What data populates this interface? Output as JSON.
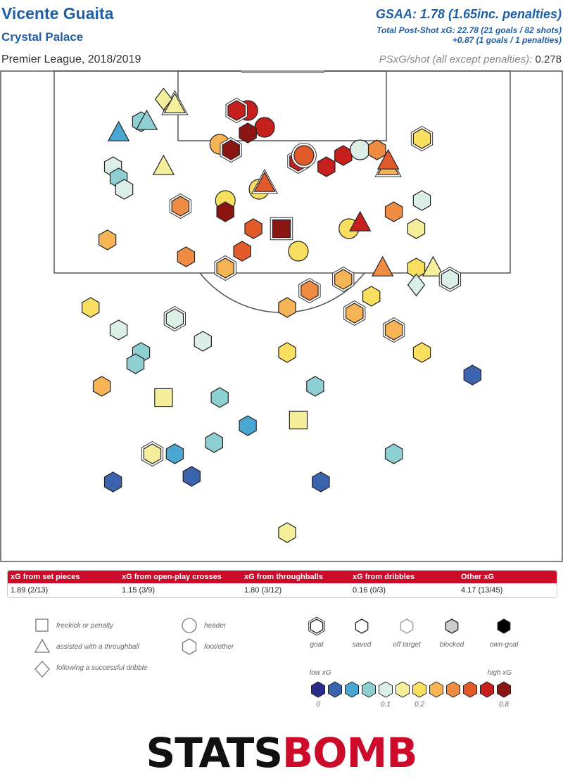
{
  "header": {
    "player": "Vicente Guaita",
    "team": "Crystal Palace",
    "competition": "Premier League, 2018/2019",
    "gsaa": "GSAA: 1.78 (1.65inc. penalties)",
    "psxg_line1": "Total Post-Shot xG: 22.78 (21 goals / 82 shots)",
    "psxg_line2": "+0.87 (1 goals / 1 penalties)",
    "per_shot_label": "PSxG/shot (all except penalties):",
    "per_shot_value": "0.278"
  },
  "xg_table": {
    "headers": [
      "xG from set pieces",
      "xG from open-play crosses",
      "xG from throughballs",
      "xG from dribbles",
      "Other xG"
    ],
    "values": [
      "1.89 (2/13)",
      "1.15 (3/9)",
      "1.80 (3/12)",
      "0.16 (0/3)",
      "4.17 (13/45)"
    ]
  },
  "legend": {
    "type_labels": [
      "freekick or penalty",
      "assisted with a throughball",
      "following a successful dribble",
      "header",
      "foot/other"
    ],
    "outcome_labels": [
      "goal",
      "saved",
      "off target",
      "blocked",
      "own-goal"
    ],
    "outcome_fills": [
      "#ffffff",
      "#ffffff",
      "#ffffff",
      "#cccccc",
      "#000000"
    ],
    "scale_low": "low xG",
    "scale_high": "high xG",
    "scale_ticks": [
      "0",
      "0.1",
      "0.2",
      "0.8"
    ],
    "scale_colors": [
      "#2b2c8a",
      "#3b63ae",
      "#4aa7d2",
      "#8dcfd3",
      "#dcefe6",
      "#f5ee9a",
      "#f9df5f",
      "#f6b457",
      "#ef8c44",
      "#e05a2a",
      "#c6201e",
      "#8b1512"
    ]
  },
  "logo": {
    "part1": "STATS",
    "part2": "BOMB"
  },
  "chart_data": {
    "type": "scatter",
    "description_axes": "shot locations on half pitch (x: 0-100 left-right, y: yards from goal line)",
    "shots": [
      {
        "x": 31,
        "y": 6,
        "shape": "tri",
        "xg": 0.15,
        "outcome": "goal"
      },
      {
        "x": 29,
        "y": 5,
        "shape": "dia",
        "xg": 0.18,
        "outcome": "saved"
      },
      {
        "x": 25,
        "y": 9,
        "shape": "hex",
        "xg": 0.07,
        "outcome": "saved"
      },
      {
        "x": 26,
        "y": 9,
        "shape": "tri",
        "xg": 0.07,
        "outcome": "saved"
      },
      {
        "x": 21,
        "y": 11,
        "shape": "tri",
        "xg": 0.04,
        "outcome": "saved"
      },
      {
        "x": 44,
        "y": 7,
        "shape": "circ",
        "xg": 0.75,
        "outcome": "saved"
      },
      {
        "x": 42,
        "y": 7,
        "shape": "hex",
        "xg": 0.7,
        "outcome": "goal"
      },
      {
        "x": 47,
        "y": 10,
        "shape": "circ",
        "xg": 0.7,
        "outcome": "saved"
      },
      {
        "x": 39,
        "y": 13,
        "shape": "circ",
        "xg": 0.35,
        "outcome": "saved"
      },
      {
        "x": 44,
        "y": 11,
        "shape": "hex",
        "xg": 0.85,
        "outcome": "saved"
      },
      {
        "x": 41,
        "y": 14,
        "shape": "hex",
        "xg": 0.85,
        "outcome": "goal"
      },
      {
        "x": 20,
        "y": 17,
        "shape": "hex",
        "xg": 0.1,
        "outcome": "saved"
      },
      {
        "x": 21,
        "y": 19,
        "shape": "hex",
        "xg": 0.08,
        "outcome": "saved"
      },
      {
        "x": 22,
        "y": 21,
        "shape": "hex",
        "xg": 0.1,
        "outcome": "saved"
      },
      {
        "x": 29,
        "y": 17,
        "shape": "tri",
        "xg": 0.18,
        "outcome": "saved"
      },
      {
        "x": 53,
        "y": 16,
        "shape": "hex",
        "xg": 0.75,
        "outcome": "goal"
      },
      {
        "x": 54,
        "y": 15,
        "shape": "circ",
        "xg": 0.6,
        "outcome": "goal"
      },
      {
        "x": 58,
        "y": 17,
        "shape": "hex",
        "xg": 0.75,
        "outcome": "saved"
      },
      {
        "x": 61,
        "y": 15,
        "shape": "hex",
        "xg": 0.75,
        "outcome": "saved"
      },
      {
        "x": 64,
        "y": 14,
        "shape": "circ",
        "xg": 0.1,
        "outcome": "saved"
      },
      {
        "x": 67,
        "y": 14,
        "shape": "hex",
        "xg": 0.45,
        "outcome": "saved"
      },
      {
        "x": 69,
        "y": 17,
        "shape": "tri",
        "xg": 0.35,
        "outcome": "goal"
      },
      {
        "x": 69,
        "y": 16,
        "shape": "tri",
        "xg": 0.6,
        "outcome": "saved"
      },
      {
        "x": 75,
        "y": 12,
        "shape": "hex",
        "xg": 0.2,
        "outcome": "goal"
      },
      {
        "x": 40,
        "y": 23,
        "shape": "circ",
        "xg": 0.2,
        "outcome": "saved"
      },
      {
        "x": 40,
        "y": 25,
        "shape": "hex",
        "xg": 0.8,
        "outcome": "saved"
      },
      {
        "x": 46,
        "y": 21,
        "shape": "circ",
        "xg": 0.2,
        "outcome": "saved"
      },
      {
        "x": 47,
        "y": 20,
        "shape": "tri",
        "xg": 0.6,
        "outcome": "goal"
      },
      {
        "x": 32,
        "y": 24,
        "shape": "hex",
        "xg": 0.4,
        "outcome": "goal"
      },
      {
        "x": 45,
        "y": 28,
        "shape": "hex",
        "xg": 0.5,
        "outcome": "saved"
      },
      {
        "x": 50,
        "y": 28,
        "shape": "sq",
        "xg": 0.85,
        "outcome": "goal"
      },
      {
        "x": 62,
        "y": 28,
        "shape": "circ",
        "xg": 0.2,
        "outcome": "saved"
      },
      {
        "x": 64,
        "y": 27,
        "shape": "tri",
        "xg": 0.7,
        "outcome": "saved"
      },
      {
        "x": 70,
        "y": 25,
        "shape": "hex",
        "xg": 0.45,
        "outcome": "saved"
      },
      {
        "x": 75,
        "y": 23,
        "shape": "hex",
        "xg": 0.12,
        "outcome": "saved"
      },
      {
        "x": 74,
        "y": 28,
        "shape": "hex",
        "xg": 0.15,
        "outcome": "saved"
      },
      {
        "x": 19,
        "y": 30,
        "shape": "hex",
        "xg": 0.3,
        "outcome": "saved"
      },
      {
        "x": 33,
        "y": 33,
        "shape": "hex",
        "xg": 0.45,
        "outcome": "saved"
      },
      {
        "x": 43,
        "y": 32,
        "shape": "hex",
        "xg": 0.5,
        "outcome": "saved"
      },
      {
        "x": 40,
        "y": 35,
        "shape": "hex",
        "xg": 0.3,
        "outcome": "goal"
      },
      {
        "x": 53,
        "y": 32,
        "shape": "circ",
        "xg": 0.2,
        "outcome": "saved"
      },
      {
        "x": 68,
        "y": 35,
        "shape": "tri",
        "xg": 0.4,
        "outcome": "saved"
      },
      {
        "x": 74,
        "y": 35,
        "shape": "hex",
        "xg": 0.2,
        "outcome": "saved"
      },
      {
        "x": 77,
        "y": 35,
        "shape": "tri",
        "xg": 0.15,
        "outcome": "saved"
      },
      {
        "x": 80,
        "y": 37,
        "shape": "hex",
        "xg": 0.12,
        "outcome": "goal"
      },
      {
        "x": 74,
        "y": 38,
        "shape": "dia",
        "xg": 0.1,
        "outcome": "saved"
      },
      {
        "x": 61,
        "y": 37,
        "shape": "hex",
        "xg": 0.3,
        "outcome": "goal"
      },
      {
        "x": 55,
        "y": 39,
        "shape": "hex",
        "xg": 0.45,
        "outcome": "goal"
      },
      {
        "x": 66,
        "y": 40,
        "shape": "hex",
        "xg": 0.2,
        "outcome": "saved"
      },
      {
        "x": 16,
        "y": 42,
        "shape": "hex",
        "xg": 0.2,
        "outcome": "saved"
      },
      {
        "x": 51,
        "y": 42,
        "shape": "hex",
        "xg": 0.3,
        "outcome": "saved"
      },
      {
        "x": 63,
        "y": 43,
        "shape": "hex",
        "xg": 0.3,
        "outcome": "goal"
      },
      {
        "x": 31,
        "y": 44,
        "shape": "hex",
        "xg": 0.12,
        "outcome": "goal"
      },
      {
        "x": 21,
        "y": 46,
        "shape": "hex",
        "xg": 0.12,
        "outcome": "saved"
      },
      {
        "x": 36,
        "y": 48,
        "shape": "hex",
        "xg": 0.12,
        "outcome": "saved"
      },
      {
        "x": 70,
        "y": 46,
        "shape": "hex",
        "xg": 0.3,
        "outcome": "goal"
      },
      {
        "x": 25,
        "y": 50,
        "shape": "hex",
        "xg": 0.09,
        "outcome": "saved"
      },
      {
        "x": 24,
        "y": 52,
        "shape": "hex",
        "xg": 0.08,
        "outcome": "saved"
      },
      {
        "x": 51,
        "y": 50,
        "shape": "hex",
        "xg": 0.2,
        "outcome": "saved"
      },
      {
        "x": 75,
        "y": 50,
        "shape": "hex",
        "xg": 0.2,
        "outcome": "saved"
      },
      {
        "x": 18,
        "y": 56,
        "shape": "hex",
        "xg": 0.3,
        "outcome": "saved"
      },
      {
        "x": 29,
        "y": 58,
        "shape": "sq",
        "xg": 0.15,
        "outcome": "saved"
      },
      {
        "x": 39,
        "y": 58,
        "shape": "hex",
        "xg": 0.09,
        "outcome": "saved"
      },
      {
        "x": 56,
        "y": 56,
        "shape": "hex",
        "xg": 0.07,
        "outcome": "saved"
      },
      {
        "x": 84,
        "y": 54,
        "shape": "hex",
        "xg": 0.02,
        "outcome": "saved"
      },
      {
        "x": 44,
        "y": 63,
        "shape": "hex",
        "xg": 0.04,
        "outcome": "saved"
      },
      {
        "x": 53,
        "y": 62,
        "shape": "sq",
        "xg": 0.15,
        "outcome": "saved"
      },
      {
        "x": 38,
        "y": 66,
        "shape": "hex",
        "xg": 0.09,
        "outcome": "saved"
      },
      {
        "x": 27,
        "y": 68,
        "shape": "hex",
        "xg": 0.15,
        "outcome": "goal"
      },
      {
        "x": 31,
        "y": 68,
        "shape": "hex",
        "xg": 0.04,
        "outcome": "saved"
      },
      {
        "x": 70,
        "y": 68,
        "shape": "hex",
        "xg": 0.07,
        "outcome": "saved"
      },
      {
        "x": 20,
        "y": 73,
        "shape": "hex",
        "xg": 0.02,
        "outcome": "saved"
      },
      {
        "x": 34,
        "y": 72,
        "shape": "hex",
        "xg": 0.03,
        "outcome": "saved"
      },
      {
        "x": 57,
        "y": 73,
        "shape": "hex",
        "xg": 0.03,
        "outcome": "saved"
      },
      {
        "x": 51,
        "y": 82,
        "shape": "hex",
        "xg": 0.15,
        "outcome": "saved"
      }
    ]
  }
}
